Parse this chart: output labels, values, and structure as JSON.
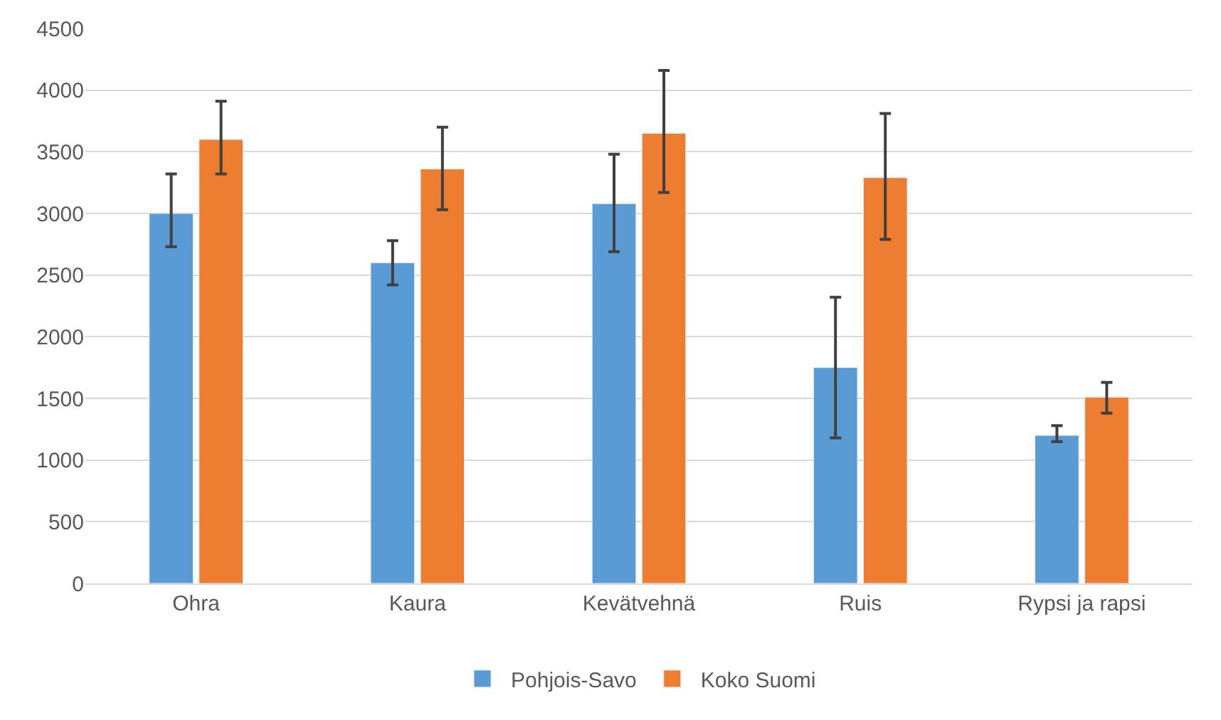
{
  "chart_data": {
    "type": "bar",
    "categories": [
      "Ohra",
      "Kaura",
      "Kevätvehnä",
      "Ruis",
      "Rypsi ja rapsi"
    ],
    "series": [
      {
        "name": "Pohjois-Savo",
        "color": "#5b9bd5",
        "values": [
          3000,
          2600,
          3080,
          1750,
          1200
        ],
        "errors": [
          [
            2730,
            3320
          ],
          [
            2420,
            2780
          ],
          [
            2690,
            3480
          ],
          [
            1180,
            2320
          ],
          [
            1150,
            1280
          ]
        ]
      },
      {
        "name": "Koko Suomi",
        "color": "#ed7d31",
        "values": [
          3600,
          3360,
          3650,
          3290,
          1510
        ],
        "errors": [
          [
            3320,
            3910
          ],
          [
            3030,
            3700
          ],
          [
            3170,
            4160
          ],
          [
            2790,
            3810
          ],
          [
            1380,
            1630
          ]
        ]
      }
    ],
    "ylim": [
      0,
      4500
    ],
    "yticks": [
      0,
      500,
      1000,
      1500,
      2000,
      2500,
      3000,
      3500,
      4000,
      4500
    ],
    "grid": "y",
    "legend": "bottom"
  }
}
